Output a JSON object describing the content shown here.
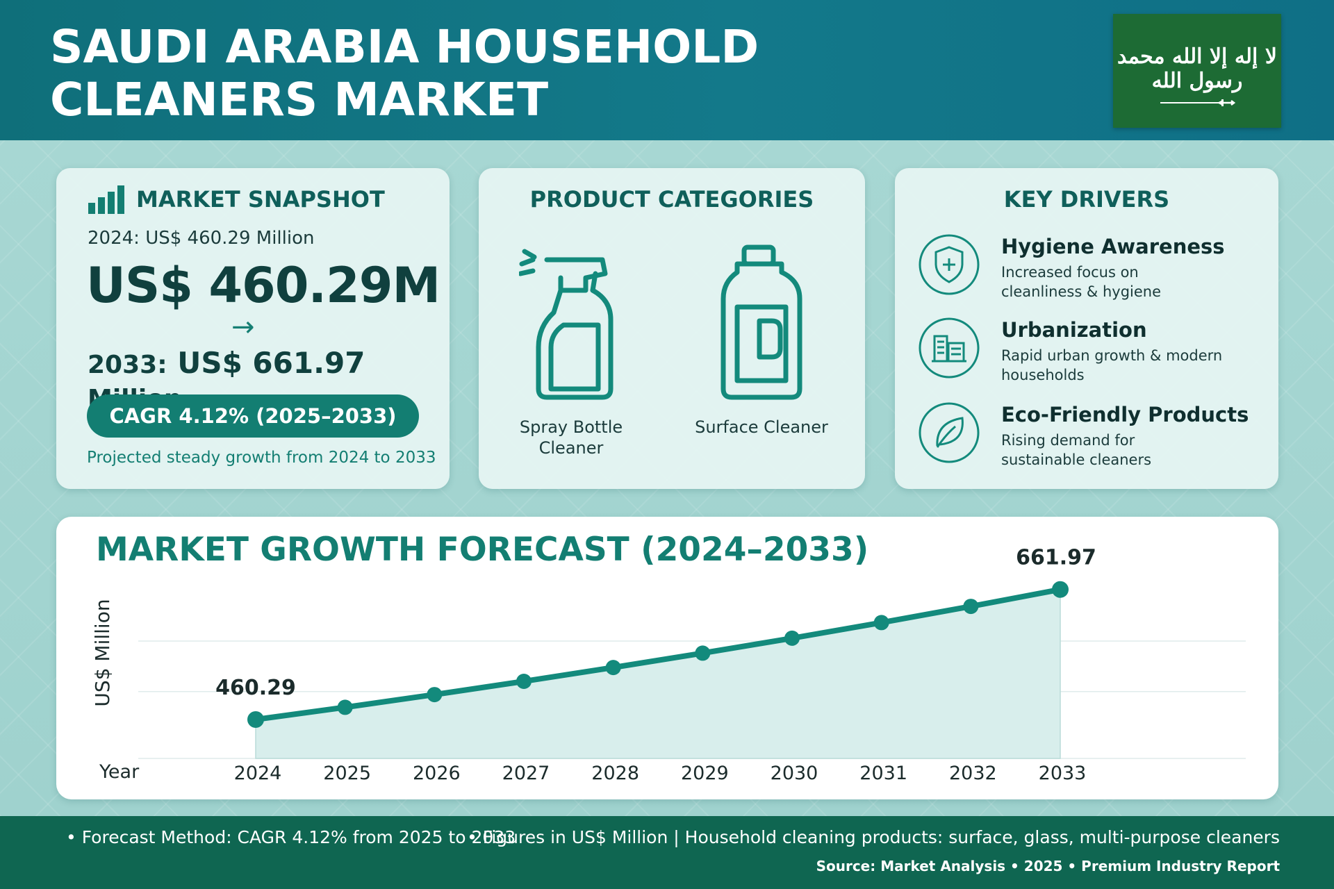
{
  "header": {
    "title_line1": "SAUDI ARABIA HOUSEHOLD",
    "title_line2": "CLEANERS MARKET",
    "flag_script": "لا إله إلا الله محمد رسول الله",
    "flag_icon": "saudi-flag",
    "colors": {
      "header": "#13798a",
      "flag_green": "#1d6b34"
    }
  },
  "snapshot": {
    "title": "MARKET SNAPSHOT",
    "line_2024": "2024: US$ 460.29 Million",
    "big_value": "US$ 460.29M",
    "arrow": "→",
    "label_2033": "2033:",
    "value_2033": "US$ 661.97",
    "unit_2033": "Million",
    "cagr": "CAGR 4.12% (2025–2033)",
    "note": "Projected steady growth from 2024 to 2033",
    "icon": "bar-chart-icon"
  },
  "products": {
    "title": "PRODUCT CATEGORIES",
    "items": [
      {
        "label_l1": "Spray Bottle",
        "label_l2": "Cleaner",
        "icon": "spray-bottle-icon"
      },
      {
        "label_l1": "Surface Cleaner",
        "label_l2": "",
        "icon": "jug-icon"
      }
    ]
  },
  "drivers": {
    "title": "KEY DRIVERS",
    "items": [
      {
        "title": "Hygiene Awareness",
        "desc_l1": "Increased focus on",
        "desc_l2": "cleanliness & hygiene",
        "icon": "shield-plus-icon"
      },
      {
        "title": "Urbanization",
        "desc_l1": "Rapid urban growth & modern",
        "desc_l2": "households",
        "icon": "buildings-icon"
      },
      {
        "title": "Eco-Friendly Products",
        "desc_l1": "Rising demand for",
        "desc_l2": "sustainable cleaners",
        "icon": "leaf-icon"
      }
    ]
  },
  "chart_data": {
    "type": "area",
    "title": "MARKET GROWTH FORECAST (2024–2033)",
    "xlabel": "Year",
    "ylabel": "US$ Million",
    "x": [
      "2024",
      "2025",
      "2026",
      "2027",
      "2028",
      "2029",
      "2030",
      "2031",
      "2032",
      "2033"
    ],
    "series": [
      {
        "values": [
          460.29,
          479.25,
          499.0,
          519.55,
          540.96,
          563.24,
          586.45,
          610.61,
          635.76,
          661.97
        ]
      }
    ],
    "data_labels": {
      "first": "460.29",
      "last": "661.97"
    },
    "ylim": [
      400,
      680
    ],
    "grid": true,
    "legend": "none",
    "colors": {
      "line": "#138a7c",
      "fill": "#d8eeec"
    }
  },
  "footer": {
    "left": "• Forecast Method: CAGR 4.12% from 2025 to 2033",
    "right": "• Figures in US$ Million  |  Household cleaning products: surface, glass, multi-purpose cleaners",
    "source": "Source: Market Analysis • 2025 • Premium Industry Report"
  }
}
